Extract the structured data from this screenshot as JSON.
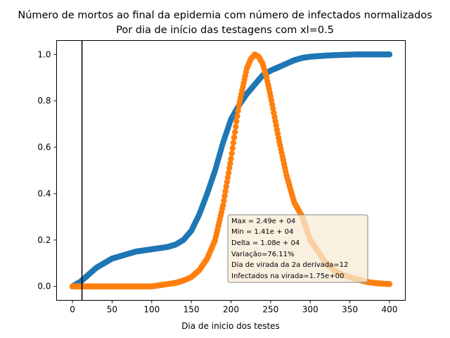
{
  "chart_data": {
    "type": "scatter",
    "title": "Número de mortos ao final da epidemia com número de infectados normalizados",
    "subtitle": "Por dia de início das testagens com xl=0.5",
    "xlabel": "Dia de inicio dos testes",
    "ylabel": "",
    "xlim": [
      -20,
      420
    ],
    "ylim": [
      -0.06,
      1.06
    ],
    "xticks": [
      "0",
      "50",
      "100",
      "150",
      "200",
      "250",
      "300",
      "350",
      "400"
    ],
    "yticks": [
      "0.0",
      "0.2",
      "0.4",
      "0.6",
      "0.8",
      "1.0"
    ],
    "vline_x": 12,
    "vline_color": "#000000",
    "grid": false,
    "series": [
      {
        "color": "#1f77b4",
        "x": [
          0,
          10,
          20,
          30,
          40,
          50,
          60,
          70,
          80,
          90,
          100,
          110,
          120,
          130,
          140,
          150,
          160,
          170,
          180,
          190,
          200,
          210,
          220,
          230,
          240,
          250,
          260,
          270,
          280,
          290,
          300,
          320,
          340,
          360,
          380,
          400
        ],
        "values": [
          0.0,
          0.02,
          0.05,
          0.08,
          0.1,
          0.12,
          0.13,
          0.14,
          0.15,
          0.155,
          0.16,
          0.165,
          0.17,
          0.18,
          0.2,
          0.24,
          0.31,
          0.4,
          0.5,
          0.62,
          0.72,
          0.78,
          0.83,
          0.87,
          0.91,
          0.93,
          0.945,
          0.96,
          0.975,
          0.985,
          0.99,
          0.995,
          0.998,
          1.0,
          1.0,
          1.0
        ]
      },
      {
        "color": "#ff7f0e",
        "x": [
          0,
          20,
          40,
          60,
          80,
          100,
          110,
          120,
          130,
          140,
          150,
          160,
          170,
          180,
          190,
          200,
          210,
          220,
          225,
          230,
          235,
          240,
          245,
          250,
          260,
          270,
          280,
          290,
          300,
          310,
          320,
          330,
          340,
          350,
          360,
          370,
          380,
          390,
          400
        ],
        "values": [
          0.0,
          0.0,
          0.0,
          0.0,
          0.0,
          0.0,
          0.005,
          0.01,
          0.015,
          0.025,
          0.04,
          0.07,
          0.12,
          0.2,
          0.35,
          0.55,
          0.78,
          0.94,
          0.98,
          1.0,
          0.99,
          0.96,
          0.9,
          0.82,
          0.64,
          0.48,
          0.36,
          0.3,
          0.2,
          0.15,
          0.1,
          0.07,
          0.05,
          0.04,
          0.03,
          0.02,
          0.015,
          0.012,
          0.01
        ]
      }
    ],
    "annotation": {
      "lines": [
        "Max = 2.49e + 04",
        "Min = 1.41e + 04",
        "Delta = 1.08e + 04",
        "Variação=76.11%",
        "Dia de virada da 2a derivada=12",
        "Infectados na virada=1.75e+00"
      ],
      "facecolor": "#f7ebd6",
      "edgecolor": "#888888"
    }
  }
}
